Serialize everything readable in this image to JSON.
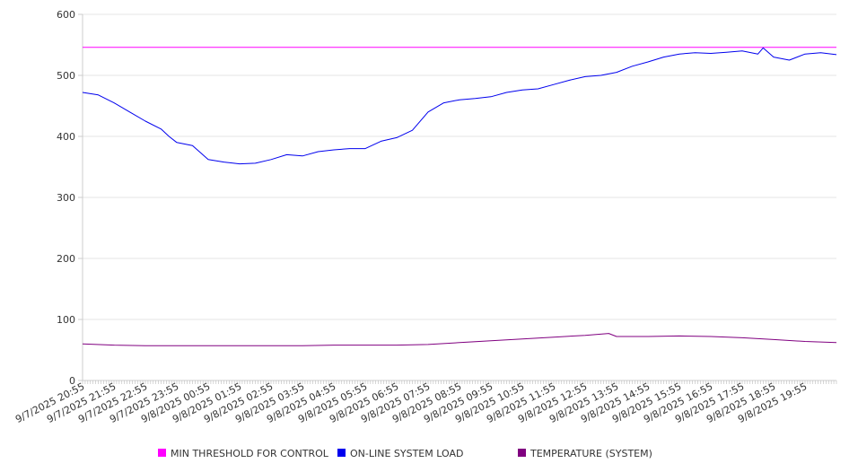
{
  "chart_data": {
    "type": "line",
    "x_labels": [
      "9/7/2025 20:55",
      "9/7/2025 21:55",
      "9/7/2025 22:55",
      "9/7/2025 23:55",
      "9/8/2025 00:55",
      "9/8/2025 01:55",
      "9/8/2025 02:55",
      "9/8/2025 03:55",
      "9/8/2025 04:55",
      "9/8/2025 05:55",
      "9/8/2025 06:55",
      "9/8/2025 07:55",
      "9/8/2025 08:55",
      "9/8/2025 09:55",
      "9/8/2025 10:55",
      "9/8/2025 11:55",
      "9/8/2025 12:55",
      "9/8/2025 13:55",
      "9/8/2025 14:55",
      "9/8/2025 15:55",
      "9/8/2025 16:55",
      "9/8/2025 17:55",
      "9/8/2025 18:55",
      "9/8/2025 19:55"
    ],
    "ylim": [
      0,
      600
    ],
    "yticks": [
      0,
      100,
      200,
      300,
      400,
      500,
      600
    ],
    "grid": true,
    "legend_position": "bottom",
    "series": [
      {
        "name": "MIN THRESHOLD FOR CONTROL",
        "color": "#ff00ff",
        "x": [
          "9/7/2025 20:55",
          "9/8/2025 20:55"
        ],
        "values": [
          546,
          546
        ]
      },
      {
        "name": "ON-LINE SYSTEM LOAD",
        "color": "#0000ee",
        "x": [
          "9/7/2025 20:55",
          "9/7/2025 21:25",
          "9/7/2025 21:55",
          "9/7/2025 22:25",
          "9/7/2025 22:55",
          "9/7/2025 23:25",
          "9/7/2025 23:40",
          "9/7/2025 23:55",
          "9/8/2025 00:25",
          "9/8/2025 00:55",
          "9/8/2025 01:25",
          "9/8/2025 01:55",
          "9/8/2025 02:25",
          "9/8/2025 02:55",
          "9/8/2025 03:25",
          "9/8/2025 03:55",
          "9/8/2025 04:25",
          "9/8/2025 04:55",
          "9/8/2025 05:25",
          "9/8/2025 05:55",
          "9/8/2025 06:25",
          "9/8/2025 06:55",
          "9/8/2025 07:25",
          "9/8/2025 07:55",
          "9/8/2025 08:25",
          "9/8/2025 08:55",
          "9/8/2025 09:25",
          "9/8/2025 09:55",
          "9/8/2025 10:25",
          "9/8/2025 10:55",
          "9/8/2025 11:25",
          "9/8/2025 11:55",
          "9/8/2025 12:25",
          "9/8/2025 12:55",
          "9/8/2025 13:25",
          "9/8/2025 13:55",
          "9/8/2025 14:25",
          "9/8/2025 14:55",
          "9/8/2025 15:25",
          "9/8/2025 15:55",
          "9/8/2025 16:25",
          "9/8/2025 16:55",
          "9/8/2025 17:25",
          "9/8/2025 17:55",
          "9/8/2025 18:25",
          "9/8/2025 18:35",
          "9/8/2025 18:55",
          "9/8/2025 19:25",
          "9/8/2025 19:55",
          "9/8/2025 20:25",
          "9/8/2025 20:55"
        ],
        "values": [
          472,
          468,
          455,
          440,
          425,
          412,
          400,
          390,
          385,
          362,
          358,
          355,
          356,
          362,
          370,
          368,
          375,
          378,
          380,
          380,
          392,
          398,
          410,
          440,
          455,
          460,
          462,
          465,
          472,
          476,
          478,
          485,
          492,
          498,
          500,
          505,
          515,
          522,
          530,
          535,
          537,
          536,
          538,
          540,
          535,
          545,
          530,
          525,
          535,
          537,
          534
        ]
      },
      {
        "name": "TEMPERATURE (SYSTEM)",
        "color": "#800080",
        "x": [
          "9/7/2025 20:55",
          "9/7/2025 21:55",
          "9/7/2025 22:55",
          "9/7/2025 23:55",
          "9/8/2025 00:55",
          "9/8/2025 01:55",
          "9/8/2025 02:55",
          "9/8/2025 03:55",
          "9/8/2025 04:55",
          "9/8/2025 05:55",
          "9/8/2025 06:55",
          "9/8/2025 07:55",
          "9/8/2025 08:55",
          "9/8/2025 09:55",
          "9/8/2025 10:55",
          "9/8/2025 11:55",
          "9/8/2025 12:55",
          "9/8/2025 13:40",
          "9/8/2025 13:55",
          "9/8/2025 14:55",
          "9/8/2025 15:55",
          "9/8/2025 16:55",
          "9/8/2025 17:55",
          "9/8/2025 18:55",
          "9/8/2025 19:55",
          "9/8/2025 20:55"
        ],
        "values": [
          60,
          58,
          57,
          57,
          57,
          57,
          57,
          57,
          58,
          58,
          58,
          59,
          62,
          65,
          68,
          71,
          74,
          77,
          72,
          72,
          73,
          72,
          70,
          67,
          64,
          62
        ]
      }
    ]
  }
}
